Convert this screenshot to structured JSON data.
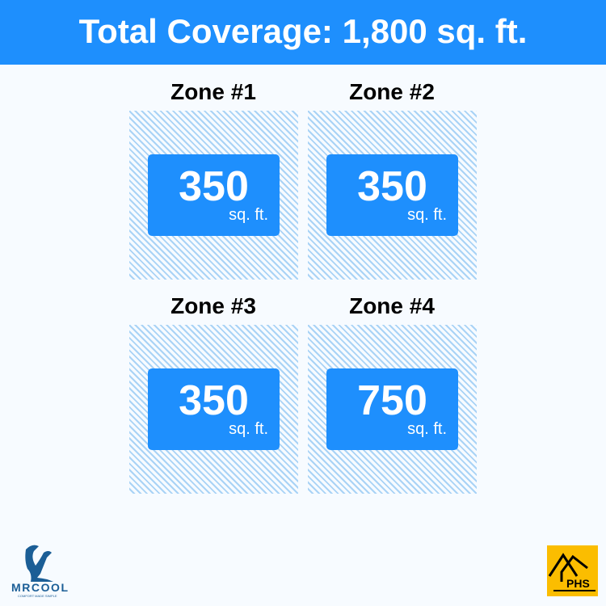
{
  "header": {
    "title": "Total Coverage: 1,800 sq. ft."
  },
  "zones": [
    {
      "label": "Zone #1",
      "value": "350",
      "unit": "sq. ft."
    },
    {
      "label": "Zone #2",
      "value": "350",
      "unit": "sq. ft."
    },
    {
      "label": "Zone #3",
      "value": "350",
      "unit": "sq. ft."
    },
    {
      "label": "Zone #4",
      "value": "750",
      "unit": "sq. ft."
    }
  ],
  "logos": {
    "left": {
      "name": "MRCOOL",
      "tagline": "COMFORT MADE SIMPLE"
    },
    "right": {
      "name": "PHS"
    }
  },
  "colors": {
    "accent": "#1e8ffd",
    "hatch": "#a9d3f6",
    "phs": "#fbbd00"
  }
}
